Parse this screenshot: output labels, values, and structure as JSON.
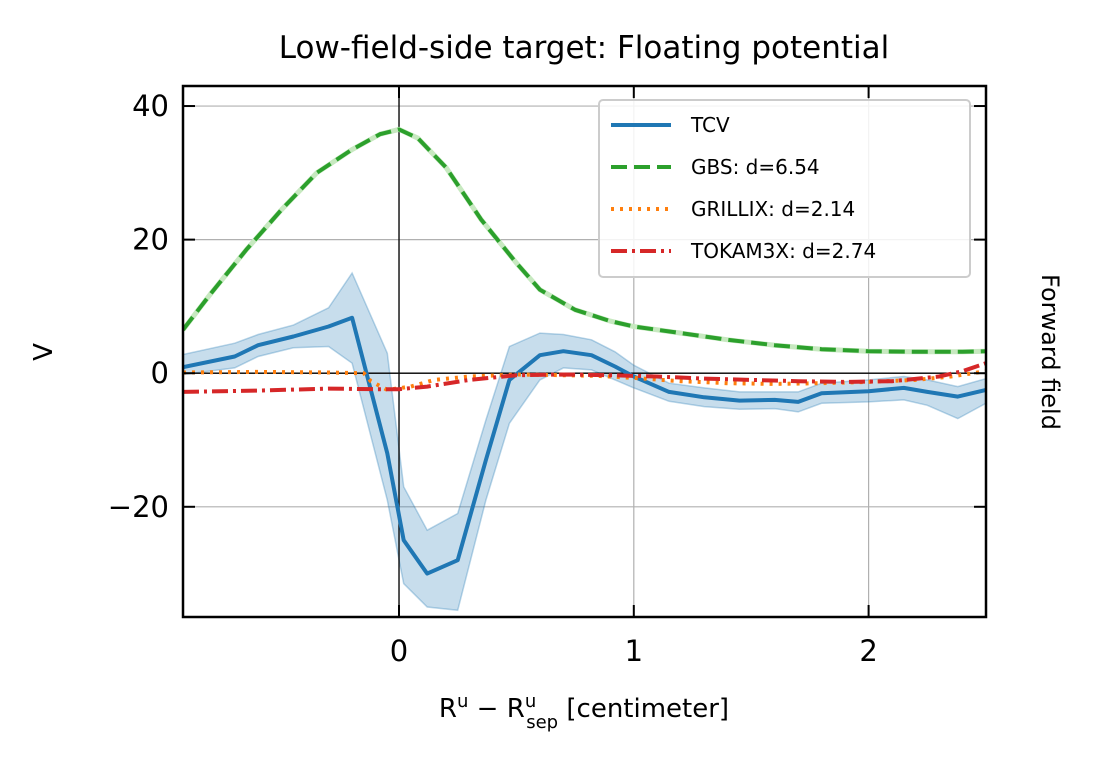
{
  "chart_data": {
    "type": "line",
    "title": "Low-field-side target: Floating potential",
    "xlabel_main": "R",
    "xlabel_sup": "u",
    "xlabel_minus": " − R",
    "xlabel_sub": "sep",
    "xlabel_unit": " [centimeter]",
    "ylabel": "V",
    "side_label": "Forward field",
    "xlim": [
      -0.92,
      2.5
    ],
    "ylim": [
      -36.5,
      43
    ],
    "xticks": [
      0,
      1,
      2
    ],
    "yticks": [
      -20,
      0,
      20,
      40
    ],
    "xtick_labels": [
      "0",
      "1",
      "2"
    ],
    "ytick_labels": [
      "−20",
      "0",
      "20",
      "40"
    ],
    "grid": true,
    "legend_position": "upper-right",
    "series": [
      {
        "name": "TCV",
        "color": "#1f77b4",
        "style": "solid",
        "x": [
          -0.92,
          -0.7,
          -0.6,
          -0.45,
          -0.3,
          -0.2,
          -0.05,
          0.02,
          0.12,
          0.25,
          0.37,
          0.47,
          0.6,
          0.7,
          0.82,
          0.92,
          1.0,
          1.15,
          1.3,
          1.45,
          1.6,
          1.7,
          1.8,
          2.0,
          2.15,
          2.25,
          2.38,
          2.5
        ],
        "y": [
          0.9,
          2.5,
          4.2,
          5.5,
          7.0,
          8.3,
          -12.0,
          -25.0,
          -30.0,
          -28.0,
          -13.0,
          -1.0,
          2.7,
          3.3,
          2.7,
          1.0,
          -0.5,
          -2.8,
          -3.6,
          -4.1,
          -4.0,
          -4.3,
          -3.0,
          -2.7,
          -2.2,
          -2.8,
          -3.5,
          -2.5
        ],
        "band_upper": [
          2.8,
          4.5,
          5.8,
          7.2,
          9.8,
          15.0,
          3.0,
          -17.0,
          -23.5,
          -21.0,
          -7.0,
          4.0,
          6.0,
          5.8,
          5.0,
          3.2,
          1.2,
          -1.5,
          -2.2,
          -2.8,
          -2.8,
          -2.8,
          -1.5,
          -1.0,
          -0.5,
          -1.0,
          -2.0,
          -0.8
        ],
        "band_lower": [
          -0.2,
          0.8,
          2.5,
          3.8,
          4.0,
          1.5,
          -19.0,
          -31.5,
          -35.0,
          -35.5,
          -19.0,
          -7.5,
          -1.0,
          0.8,
          0.5,
          -1.0,
          -2.2,
          -4.2,
          -5.0,
          -5.4,
          -5.3,
          -5.8,
          -4.5,
          -4.3,
          -4.0,
          -4.8,
          -6.8,
          -4.5
        ]
      },
      {
        "name": "GBS: d=6.54",
        "color": "#2ca02c",
        "style": "dashed",
        "x": [
          -0.92,
          -0.8,
          -0.65,
          -0.5,
          -0.35,
          -0.2,
          -0.08,
          0.0,
          0.08,
          0.2,
          0.35,
          0.5,
          0.6,
          0.75,
          0.9,
          1.0,
          1.2,
          1.4,
          1.6,
          1.8,
          2.0,
          2.2,
          2.4,
          2.5
        ],
        "y": [
          6.5,
          12.0,
          18.5,
          24.5,
          30.0,
          33.5,
          35.8,
          36.5,
          35.2,
          30.8,
          23.0,
          16.5,
          12.5,
          9.5,
          7.8,
          7.0,
          6.0,
          5.0,
          4.2,
          3.6,
          3.3,
          3.2,
          3.2,
          3.3
        ]
      },
      {
        "name": "GRILLIX: d=2.14",
        "color": "#ff7f0e",
        "style": "dotted",
        "x": [
          -0.92,
          -0.6,
          -0.3,
          -0.15,
          -0.12,
          -0.05,
          0.05,
          0.15,
          0.3,
          0.5,
          0.7,
          0.85,
          1.0,
          1.2,
          1.4,
          1.6,
          1.8,
          2.0,
          2.2,
          2.35,
          2.5
        ],
        "y": [
          0.1,
          0.2,
          0.1,
          0.0,
          -1.2,
          -2.5,
          -2.0,
          -1.0,
          -0.5,
          -0.2,
          -0.3,
          -0.4,
          -0.7,
          -1.2,
          -1.5,
          -1.6,
          -1.5,
          -1.3,
          -1.0,
          -0.5,
          0.3
        ]
      },
      {
        "name": "TOKAM3X: d=2.74",
        "color": "#d62728",
        "style": "dashdot",
        "x": [
          -0.92,
          -0.6,
          -0.3,
          -0.1,
          0.0,
          0.12,
          0.3,
          0.5,
          0.7,
          0.9,
          1.1,
          1.3,
          1.5,
          1.7,
          1.9,
          2.1,
          2.3,
          2.4,
          2.5
        ],
        "y": [
          -2.8,
          -2.6,
          -2.3,
          -2.4,
          -2.4,
          -2.0,
          -1.0,
          -0.3,
          -0.2,
          -0.3,
          -0.5,
          -0.8,
          -1.0,
          -1.2,
          -1.3,
          -1.2,
          -0.5,
          0.3,
          1.5
        ]
      }
    ]
  }
}
